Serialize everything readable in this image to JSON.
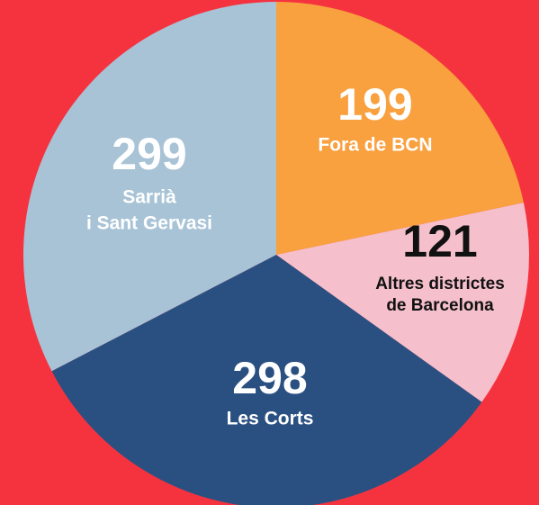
{
  "chart_data": {
    "type": "pie",
    "categories": [
      [
        "Fora de BCN"
      ],
      [
        "Altres districtes",
        "de Barcelona"
      ],
      [
        "Les Corts"
      ],
      [
        "Sarrià",
        "i Sant Gervasi"
      ]
    ],
    "values": [
      199,
      121,
      298,
      299
    ],
    "colors": [
      "#f9a03f",
      "#f5c0cb",
      "#2a5082",
      "#a8c3d6"
    ]
  }
}
